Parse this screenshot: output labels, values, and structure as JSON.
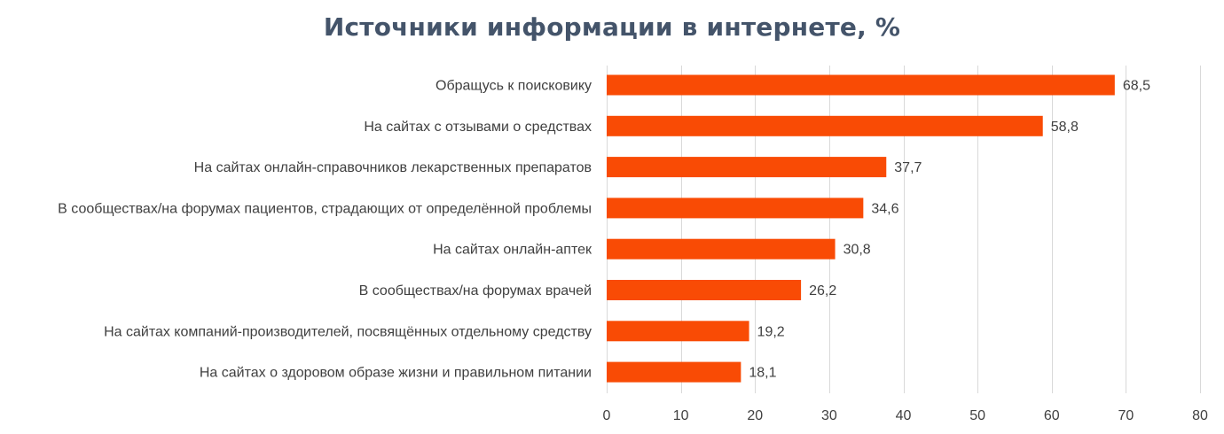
{
  "title": "Источники информации в интернете, %",
  "colors": {
    "bar": "#f94b05",
    "grid": "#d9d9d9",
    "text": "#404040",
    "title": "#44546a"
  },
  "chart_data": {
    "type": "bar",
    "orientation": "horizontal",
    "title": "Источники информации в интернете, %",
    "xlabel": "",
    "ylabel": "",
    "xlim": [
      0,
      80
    ],
    "ticks": [
      0,
      10,
      20,
      30,
      40,
      50,
      60,
      70,
      80
    ],
    "tick_labels": [
      "0",
      "10",
      "20",
      "30",
      "40",
      "50",
      "60",
      "70",
      "80"
    ],
    "grid": true,
    "categories": [
      "Обращусь к поисковику",
      "На сайтах с отзывами о средствах",
      "На сайтах онлайн-справочников лекарственных препаратов",
      "В сообществах/на форумах пациентов, страдающих от определённой проблемы",
      "На сайтах онлайн-аптек",
      "В сообществах/на форумах врачей",
      "На сайтах компаний-производителей, посвящённых отдельному средству",
      "На сайтах о здоровом образе жизни и правильном питании"
    ],
    "values": [
      68.5,
      58.8,
      37.7,
      34.6,
      30.8,
      26.2,
      19.2,
      18.1
    ],
    "value_labels": [
      "68,5",
      "58,8",
      "37,7",
      "34,6",
      "30,8",
      "26,2",
      "19,2",
      "18,1"
    ]
  }
}
